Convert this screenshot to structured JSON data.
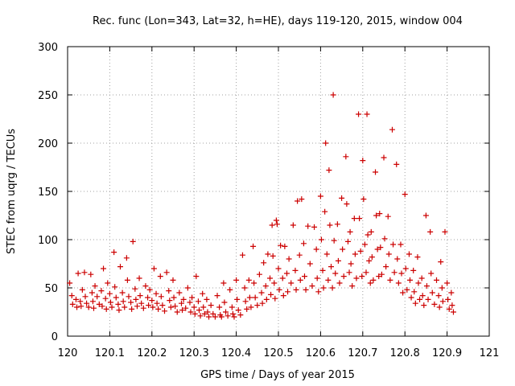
{
  "chart_data": {
    "type": "scatter",
    "title": "Rec. func (Lon=343, Lat=32, h=HE), days 119-120, 2015, window 004",
    "xlabel": "GPS time / Days of year 2015",
    "ylabel": "STEC from uqrg / TECUs",
    "xlim": [
      120,
      121
    ],
    "ylim": [
      0,
      300
    ],
    "xticks": [
      "120",
      "120.1",
      "120.2",
      "120.3",
      "120.4",
      "120.5",
      "120.6",
      "120.7",
      "120.8",
      "120.9",
      "121"
    ],
    "yticks": [
      "0",
      "50",
      "100",
      "150",
      "200",
      "250",
      "300"
    ],
    "grid": true,
    "marker": "plus",
    "color": "#cc0000",
    "series": [
      {
        "points": [
          [
            120.005,
            55
          ],
          [
            120.01,
            42
          ],
          [
            120.012,
            33
          ],
          [
            120.02,
            38
          ],
          [
            120.022,
            30
          ],
          [
            120.025,
            65
          ],
          [
            120.03,
            36
          ],
          [
            120.032,
            31
          ],
          [
            120.035,
            48
          ],
          [
            120.04,
            66
          ],
          [
            120.042,
            41
          ],
          [
            120.045,
            34
          ],
          [
            120.05,
            30
          ],
          [
            120.055,
            64
          ],
          [
            120.058,
            45
          ],
          [
            120.06,
            36
          ],
          [
            120.062,
            29
          ],
          [
            120.065,
            52
          ],
          [
            120.07,
            41
          ],
          [
            120.075,
            33
          ],
          [
            120.08,
            47
          ],
          [
            120.082,
            31
          ],
          [
            120.085,
            70
          ],
          [
            120.09,
            39
          ],
          [
            120.092,
            28
          ],
          [
            120.095,
            55
          ],
          [
            120.1,
            44
          ],
          [
            120.102,
            35
          ],
          [
            120.105,
            30
          ],
          [
            120.11,
            87
          ],
          [
            120.112,
            51
          ],
          [
            120.115,
            40
          ],
          [
            120.12,
            33
          ],
          [
            120.122,
            27
          ],
          [
            120.125,
            72
          ],
          [
            120.13,
            45
          ],
          [
            120.132,
            36
          ],
          [
            120.135,
            30
          ],
          [
            120.14,
            81
          ],
          [
            120.142,
            58
          ],
          [
            120.145,
            41
          ],
          [
            120.15,
            35
          ],
          [
            120.152,
            28
          ],
          [
            120.155,
            98
          ],
          [
            120.16,
            49
          ],
          [
            120.162,
            38
          ],
          [
            120.165,
            31
          ],
          [
            120.17,
            60
          ],
          [
            120.172,
            42
          ],
          [
            120.175,
            34
          ],
          [
            120.18,
            29
          ],
          [
            120.185,
            52
          ],
          [
            120.19,
            40
          ],
          [
            120.192,
            32
          ],
          [
            120.195,
            48
          ],
          [
            120.2,
            37
          ],
          [
            120.202,
            30
          ],
          [
            120.205,
            70
          ],
          [
            120.21,
            44
          ],
          [
            120.212,
            34
          ],
          [
            120.215,
            28
          ],
          [
            120.22,
            62
          ],
          [
            120.222,
            41
          ],
          [
            120.225,
            32
          ],
          [
            120.23,
            26
          ],
          [
            120.235,
            66
          ],
          [
            120.24,
            47
          ],
          [
            120.242,
            37
          ],
          [
            120.245,
            30
          ],
          [
            120.25,
            58
          ],
          [
            120.252,
            40
          ],
          [
            120.255,
            31
          ],
          [
            120.26,
            25
          ],
          [
            120.265,
            45
          ],
          [
            120.27,
            34
          ],
          [
            120.272,
            27
          ],
          [
            120.275,
            38
          ],
          [
            120.28,
            29
          ],
          [
            120.285,
            50
          ],
          [
            120.29,
            35
          ],
          [
            120.292,
            25
          ],
          [
            120.295,
            40
          ],
          [
            120.3,
            30
          ],
          [
            120.302,
            23
          ],
          [
            120.305,
            62
          ],
          [
            120.31,
            36
          ],
          [
            120.312,
            27
          ],
          [
            120.315,
            21
          ],
          [
            120.32,
            44
          ],
          [
            120.322,
            30
          ],
          [
            120.325,
            23
          ],
          [
            120.33,
            38
          ],
          [
            120.332,
            25
          ],
          [
            120.335,
            20
          ],
          [
            120.34,
            32
          ],
          [
            120.345,
            23
          ],
          [
            120.35,
            20
          ],
          [
            120.355,
            42
          ],
          [
            120.36,
            30
          ],
          [
            120.362,
            22
          ],
          [
            120.365,
            20
          ],
          [
            120.37,
            55
          ],
          [
            120.372,
            35
          ],
          [
            120.375,
            25
          ],
          [
            120.38,
            21
          ],
          [
            120.385,
            48
          ],
          [
            120.39,
            30
          ],
          [
            120.392,
            23
          ],
          [
            120.395,
            20
          ],
          [
            120.4,
            58
          ],
          [
            120.402,
            38
          ],
          [
            120.405,
            27
          ],
          [
            120.41,
            22
          ],
          [
            120.415,
            84
          ],
          [
            120.42,
            50
          ],
          [
            120.422,
            36
          ],
          [
            120.425,
            28
          ],
          [
            120.43,
            58
          ],
          [
            120.432,
            40
          ],
          [
            120.435,
            30
          ],
          [
            120.44,
            93
          ],
          [
            120.442,
            55
          ],
          [
            120.445,
            40
          ],
          [
            120.45,
            32
          ],
          [
            120.455,
            64
          ],
          [
            120.46,
            45
          ],
          [
            120.462,
            34
          ],
          [
            120.465,
            76
          ],
          [
            120.47,
            52
          ],
          [
            120.472,
            38
          ],
          [
            120.475,
            85
          ],
          [
            120.48,
            60
          ],
          [
            120.482,
            43
          ],
          [
            120.485,
            115
          ],
          [
            120.487,
            83
          ],
          [
            120.49,
            55
          ],
          [
            120.492,
            39
          ],
          [
            120.495,
            120
          ],
          [
            120.497,
            116
          ],
          [
            120.5,
            70
          ],
          [
            120.502,
            48
          ],
          [
            120.505,
            94
          ],
          [
            120.51,
            60
          ],
          [
            120.512,
            42
          ],
          [
            120.515,
            93
          ],
          [
            120.52,
            65
          ],
          [
            120.522,
            46
          ],
          [
            120.525,
            80
          ],
          [
            120.53,
            55
          ],
          [
            120.535,
            115
          ],
          [
            120.54,
            68
          ],
          [
            120.542,
            48
          ],
          [
            120.545,
            140
          ],
          [
            120.55,
            84
          ],
          [
            120.552,
            58
          ],
          [
            120.555,
            142
          ],
          [
            120.56,
            96
          ],
          [
            120.562,
            62
          ],
          [
            120.565,
            48
          ],
          [
            120.57,
            114
          ],
          [
            120.575,
            75
          ],
          [
            120.58,
            52
          ],
          [
            120.585,
            113
          ],
          [
            120.59,
            90
          ],
          [
            120.592,
            60
          ],
          [
            120.595,
            46
          ],
          [
            120.6,
            145
          ],
          [
            120.602,
            100
          ],
          [
            120.605,
            68
          ],
          [
            120.607,
            50
          ],
          [
            120.61,
            129
          ],
          [
            120.612,
            200
          ],
          [
            120.615,
            85
          ],
          [
            120.618,
            58
          ],
          [
            120.62,
            172
          ],
          [
            120.622,
            115
          ],
          [
            120.625,
            72
          ],
          [
            120.628,
            50
          ],
          [
            120.63,
            250
          ],
          [
            120.632,
            99
          ],
          [
            120.635,
            65
          ],
          [
            120.64,
            116
          ],
          [
            120.642,
            78
          ],
          [
            120.645,
            55
          ],
          [
            120.65,
            143
          ],
          [
            120.652,
            90
          ],
          [
            120.655,
            62
          ],
          [
            120.66,
            186
          ],
          [
            120.662,
            137
          ],
          [
            120.665,
            98
          ],
          [
            120.668,
            66
          ],
          [
            120.67,
            108
          ],
          [
            120.672,
            75
          ],
          [
            120.675,
            52
          ],
          [
            120.68,
            122
          ],
          [
            120.682,
            85
          ],
          [
            120.685,
            60
          ],
          [
            120.69,
            230
          ],
          [
            120.692,
            122
          ],
          [
            120.695,
            88
          ],
          [
            120.698,
            62
          ],
          [
            120.7,
            182
          ],
          [
            120.702,
            142
          ],
          [
            120.705,
            95
          ],
          [
            120.708,
            66
          ],
          [
            120.71,
            230
          ],
          [
            120.712,
            105
          ],
          [
            120.715,
            78
          ],
          [
            120.718,
            55
          ],
          [
            120.72,
            108
          ],
          [
            120.722,
            82
          ],
          [
            120.725,
            58
          ],
          [
            120.73,
            170
          ],
          [
            120.732,
            125
          ],
          [
            120.735,
            90
          ],
          [
            120.738,
            62
          ],
          [
            120.74,
            127
          ],
          [
            120.742,
            92
          ],
          [
            120.745,
            64
          ],
          [
            120.75,
            185
          ],
          [
            120.752,
            101
          ],
          [
            120.755,
            72
          ],
          [
            120.76,
            124
          ],
          [
            120.762,
            85
          ],
          [
            120.765,
            58
          ],
          [
            120.77,
            214
          ],
          [
            120.772,
            95
          ],
          [
            120.775,
            66
          ],
          [
            120.78,
            178
          ],
          [
            120.782,
            80
          ],
          [
            120.785,
            55
          ],
          [
            120.79,
            95
          ],
          [
            120.792,
            65
          ],
          [
            120.795,
            45
          ],
          [
            120.8,
            147
          ],
          [
            120.802,
            70
          ],
          [
            120.805,
            48
          ],
          [
            120.81,
            85
          ],
          [
            120.812,
            58
          ],
          [
            120.815,
            40
          ],
          [
            120.82,
            68
          ],
          [
            120.822,
            46
          ],
          [
            120.825,
            34
          ],
          [
            120.83,
            82
          ],
          [
            120.832,
            55
          ],
          [
            120.835,
            38
          ],
          [
            120.84,
            60
          ],
          [
            120.842,
            42
          ],
          [
            120.845,
            32
          ],
          [
            120.85,
            125
          ],
          [
            120.852,
            52
          ],
          [
            120.855,
            38
          ],
          [
            120.86,
            108
          ],
          [
            120.862,
            65
          ],
          [
            120.865,
            45
          ],
          [
            120.87,
            33
          ],
          [
            120.875,
            58
          ],
          [
            120.88,
            42
          ],
          [
            120.882,
            30
          ],
          [
            120.885,
            77
          ],
          [
            120.888,
            50
          ],
          [
            120.89,
            36
          ],
          [
            120.895,
            108
          ],
          [
            120.9,
            55
          ],
          [
            120.902,
            38
          ],
          [
            120.905,
            28
          ],
          [
            120.91,
            45
          ],
          [
            120.912,
            32
          ],
          [
            120.915,
            25
          ]
        ]
      }
    ]
  }
}
